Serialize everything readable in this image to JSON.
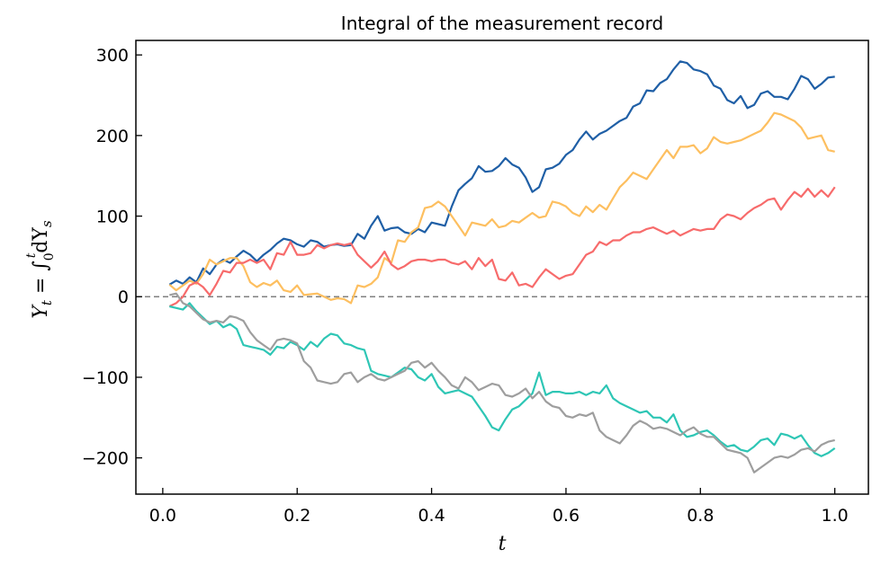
{
  "chart_data": {
    "type": "line",
    "title": "Integral of the measurement record",
    "xlabel": "t",
    "ylabel": {
      "base": "Y",
      "sub": "t",
      "mid": " = ∫",
      "lower": "0",
      "upper": "t",
      "rest": "dY",
      "rest_sub": "s"
    },
    "xlim": [
      -0.04,
      1.05
    ],
    "ylim": [
      -245,
      318
    ],
    "xticks": [
      0.0,
      0.2,
      0.4,
      0.6,
      0.8,
      1.0
    ],
    "xtick_labels": [
      "0.0",
      "0.2",
      "0.4",
      "0.6",
      "0.8",
      "1.0"
    ],
    "yticks": [
      300,
      200,
      100,
      0,
      -100,
      -200
    ],
    "ytick_labels": [
      "300",
      "200",
      "100",
      "0",
      "−100",
      "−200"
    ],
    "grid": false,
    "reference_line": {
      "y": 0,
      "style": "dashed",
      "color": "#808080"
    },
    "series": [
      {
        "color": "#1f5fa6",
        "x": [
          0.01,
          0.02,
          0.03,
          0.04,
          0.05,
          0.06,
          0.07,
          0.08,
          0.09,
          0.1,
          0.11,
          0.12,
          0.13,
          0.14,
          0.15,
          0.16,
          0.17,
          0.18,
          0.19,
          0.2,
          0.21,
          0.22,
          0.23,
          0.24,
          0.25,
          0.26,
          0.27,
          0.28,
          0.29,
          0.3,
          0.31,
          0.32,
          0.33,
          0.34,
          0.35,
          0.36,
          0.37,
          0.38,
          0.39,
          0.4,
          0.41,
          0.42,
          0.43,
          0.44,
          0.45,
          0.46,
          0.47,
          0.48,
          0.49,
          0.5,
          0.51,
          0.52,
          0.53,
          0.54,
          0.55,
          0.56,
          0.57,
          0.58,
          0.59,
          0.6,
          0.61,
          0.62,
          0.63,
          0.64,
          0.65,
          0.66,
          0.67,
          0.68,
          0.69,
          0.7,
          0.71,
          0.72,
          0.73,
          0.74,
          0.75,
          0.76,
          0.77,
          0.78,
          0.79,
          0.8,
          0.81,
          0.82,
          0.83,
          0.84,
          0.85,
          0.86,
          0.87,
          0.88,
          0.89,
          0.9,
          0.91,
          0.92,
          0.93,
          0.94,
          0.95,
          0.96,
          0.97,
          0.98,
          0.99,
          1.0
        ],
        "y": [
          15,
          20,
          16,
          24,
          18,
          35,
          28,
          40,
          46,
          42,
          50,
          57,
          52,
          44,
          52,
          58,
          66,
          72,
          70,
          65,
          62,
          70,
          68,
          62,
          64,
          65,
          63,
          64,
          78,
          72,
          88,
          100,
          82,
          85,
          86,
          80,
          78,
          84,
          80,
          92,
          90,
          88,
          112,
          132,
          140,
          147,
          162,
          155,
          156,
          162,
          172,
          164,
          160,
          148,
          130,
          136,
          158,
          160,
          165,
          176,
          182,
          195,
          205,
          195,
          202,
          206,
          212,
          218,
          222,
          236,
          240,
          256,
          255,
          265,
          270,
          282,
          292,
          290,
          282,
          280,
          276,
          262,
          258,
          244,
          240,
          249,
          234,
          238,
          252,
          255,
          248,
          248,
          245,
          258,
          274,
          270,
          258,
          264,
          272,
          273
        ]
      },
      {
        "color": "#fdbf60",
        "x": [
          0.01,
          0.02,
          0.03,
          0.04,
          0.05,
          0.06,
          0.07,
          0.08,
          0.09,
          0.1,
          0.11,
          0.12,
          0.13,
          0.14,
          0.15,
          0.16,
          0.17,
          0.18,
          0.19,
          0.2,
          0.21,
          0.22,
          0.23,
          0.24,
          0.25,
          0.26,
          0.27,
          0.28,
          0.29,
          0.3,
          0.31,
          0.32,
          0.33,
          0.34,
          0.35,
          0.36,
          0.37,
          0.38,
          0.39,
          0.4,
          0.41,
          0.42,
          0.43,
          0.44,
          0.45,
          0.46,
          0.47,
          0.48,
          0.49,
          0.5,
          0.51,
          0.52,
          0.53,
          0.54,
          0.55,
          0.56,
          0.57,
          0.58,
          0.59,
          0.6,
          0.61,
          0.62,
          0.63,
          0.64,
          0.65,
          0.66,
          0.67,
          0.68,
          0.69,
          0.7,
          0.71,
          0.72,
          0.73,
          0.74,
          0.75,
          0.76,
          0.77,
          0.78,
          0.79,
          0.8,
          0.81,
          0.82,
          0.83,
          0.84,
          0.85,
          0.86,
          0.87,
          0.88,
          0.89,
          0.9,
          0.91,
          0.92,
          0.93,
          0.94,
          0.95,
          0.96,
          0.97,
          0.98,
          0.99,
          1.0
        ],
        "y": [
          15,
          8,
          14,
          20,
          16,
          28,
          46,
          40,
          44,
          48,
          48,
          38,
          18,
          12,
          17,
          14,
          20,
          8,
          6,
          14,
          2,
          3,
          4,
          0,
          -4,
          -2,
          -3,
          -8,
          14,
          12,
          16,
          24,
          48,
          42,
          70,
          68,
          80,
          86,
          110,
          112,
          118,
          112,
          100,
          88,
          76,
          92,
          90,
          88,
          96,
          86,
          88,
          94,
          92,
          98,
          104,
          98,
          100,
          118,
          116,
          112,
          104,
          100,
          112,
          105,
          114,
          108,
          122,
          136,
          144,
          154,
          150,
          146,
          158,
          170,
          182,
          172,
          186,
          186,
          188,
          178,
          184,
          198,
          192,
          190,
          192,
          194,
          198,
          202,
          206,
          216,
          228,
          226,
          222,
          218,
          210,
          196,
          198,
          200,
          182,
          180
        ]
      },
      {
        "color": "#f76b6b",
        "x": [
          0.01,
          0.02,
          0.03,
          0.04,
          0.05,
          0.06,
          0.07,
          0.08,
          0.09,
          0.1,
          0.11,
          0.12,
          0.13,
          0.14,
          0.15,
          0.16,
          0.17,
          0.18,
          0.19,
          0.2,
          0.21,
          0.22,
          0.23,
          0.24,
          0.25,
          0.26,
          0.27,
          0.28,
          0.29,
          0.3,
          0.31,
          0.32,
          0.33,
          0.34,
          0.35,
          0.36,
          0.37,
          0.38,
          0.39,
          0.4,
          0.41,
          0.42,
          0.43,
          0.44,
          0.45,
          0.46,
          0.47,
          0.48,
          0.49,
          0.5,
          0.51,
          0.52,
          0.53,
          0.54,
          0.55,
          0.56,
          0.57,
          0.58,
          0.59,
          0.6,
          0.61,
          0.62,
          0.63,
          0.64,
          0.65,
          0.66,
          0.67,
          0.68,
          0.69,
          0.7,
          0.71,
          0.72,
          0.73,
          0.74,
          0.75,
          0.76,
          0.77,
          0.78,
          0.79,
          0.8,
          0.81,
          0.82,
          0.83,
          0.84,
          0.85,
          0.86,
          0.87,
          0.88,
          0.89,
          0.9,
          0.91,
          0.92,
          0.93,
          0.94,
          0.95,
          0.96,
          0.97,
          0.98,
          0.99,
          1.0
        ],
        "y": [
          -12,
          -8,
          0,
          14,
          18,
          12,
          2,
          16,
          32,
          30,
          42,
          42,
          46,
          42,
          46,
          34,
          54,
          52,
          68,
          52,
          52,
          54,
          64,
          60,
          64,
          66,
          64,
          66,
          52,
          44,
          36,
          44,
          56,
          40,
          34,
          38,
          44,
          46,
          46,
          44,
          46,
          46,
          42,
          40,
          44,
          34,
          48,
          38,
          46,
          22,
          20,
          30,
          14,
          16,
          12,
          24,
          34,
          28,
          22,
          26,
          28,
          40,
          52,
          56,
          68,
          64,
          70,
          70,
          76,
          80,
          80,
          84,
          86,
          82,
          78,
          82,
          76,
          80,
          84,
          82,
          84,
          84,
          96,
          102,
          100,
          96,
          104,
          110,
          114,
          120,
          122,
          108,
          120,
          130,
          124,
          134,
          124,
          132,
          124,
          136
        ]
      },
      {
        "color": "#2ec6b5",
        "x": [
          0.01,
          0.02,
          0.03,
          0.04,
          0.05,
          0.06,
          0.07,
          0.08,
          0.09,
          0.1,
          0.11,
          0.12,
          0.13,
          0.14,
          0.15,
          0.16,
          0.17,
          0.18,
          0.19,
          0.2,
          0.21,
          0.22,
          0.23,
          0.24,
          0.25,
          0.26,
          0.27,
          0.28,
          0.29,
          0.3,
          0.31,
          0.32,
          0.33,
          0.34,
          0.35,
          0.36,
          0.37,
          0.38,
          0.39,
          0.4,
          0.41,
          0.42,
          0.43,
          0.44,
          0.45,
          0.46,
          0.47,
          0.48,
          0.49,
          0.5,
          0.51,
          0.52,
          0.53,
          0.54,
          0.55,
          0.56,
          0.57,
          0.58,
          0.59,
          0.6,
          0.61,
          0.62,
          0.63,
          0.64,
          0.65,
          0.66,
          0.67,
          0.68,
          0.69,
          0.7,
          0.71,
          0.72,
          0.73,
          0.74,
          0.75,
          0.76,
          0.77,
          0.78,
          0.79,
          0.8,
          0.81,
          0.82,
          0.83,
          0.84,
          0.85,
          0.86,
          0.87,
          0.88,
          0.89,
          0.9,
          0.91,
          0.92,
          0.93,
          0.94,
          0.95,
          0.96,
          0.97,
          0.98,
          0.99,
          1.0
        ],
        "y": [
          -12,
          -14,
          -16,
          -8,
          -18,
          -26,
          -34,
          -30,
          -38,
          -34,
          -40,
          -60,
          -62,
          -64,
          -66,
          -72,
          -62,
          -64,
          -56,
          -60,
          -66,
          -56,
          -62,
          -52,
          -46,
          -48,
          -58,
          -60,
          -64,
          -66,
          -92,
          -96,
          -98,
          -100,
          -94,
          -88,
          -90,
          -100,
          -104,
          -96,
          -112,
          -120,
          -118,
          -116,
          -120,
          -124,
          -136,
          -148,
          -162,
          -166,
          -152,
          -140,
          -136,
          -128,
          -120,
          -94,
          -122,
          -118,
          -118,
          -120,
          -120,
          -118,
          -122,
          -118,
          -120,
          -110,
          -126,
          -132,
          -136,
          -140,
          -144,
          -142,
          -150,
          -150,
          -156,
          -146,
          -166,
          -174,
          -172,
          -168,
          -166,
          -172,
          -180,
          -186,
          -184,
          -190,
          -192,
          -186,
          -178,
          -176,
          -184,
          -170,
          -172,
          -176,
          -172,
          -184,
          -194,
          -198,
          -194,
          -188
        ]
      },
      {
        "color": "#9e9e9e",
        "x": [
          0.01,
          0.02,
          0.03,
          0.04,
          0.05,
          0.06,
          0.07,
          0.08,
          0.09,
          0.1,
          0.11,
          0.12,
          0.13,
          0.14,
          0.15,
          0.16,
          0.17,
          0.18,
          0.19,
          0.2,
          0.21,
          0.22,
          0.23,
          0.24,
          0.25,
          0.26,
          0.27,
          0.28,
          0.29,
          0.3,
          0.31,
          0.32,
          0.33,
          0.34,
          0.35,
          0.36,
          0.37,
          0.38,
          0.39,
          0.4,
          0.41,
          0.42,
          0.43,
          0.44,
          0.45,
          0.46,
          0.47,
          0.48,
          0.49,
          0.5,
          0.51,
          0.52,
          0.53,
          0.54,
          0.55,
          0.56,
          0.57,
          0.58,
          0.59,
          0.6,
          0.61,
          0.62,
          0.63,
          0.64,
          0.65,
          0.66,
          0.67,
          0.68,
          0.69,
          0.7,
          0.71,
          0.72,
          0.73,
          0.74,
          0.75,
          0.76,
          0.77,
          0.78,
          0.79,
          0.8,
          0.81,
          0.82,
          0.83,
          0.84,
          0.85,
          0.86,
          0.87,
          0.88,
          0.89,
          0.9,
          0.91,
          0.92,
          0.93,
          0.94,
          0.95,
          0.96,
          0.97,
          0.98,
          0.99,
          1.0
        ],
        "y": [
          2,
          4,
          -8,
          -12,
          -20,
          -28,
          -32,
          -30,
          -32,
          -24,
          -26,
          -30,
          -44,
          -54,
          -60,
          -66,
          -54,
          -52,
          -54,
          -58,
          -80,
          -88,
          -104,
          -106,
          -108,
          -106,
          -96,
          -94,
          -106,
          -100,
          -96,
          -102,
          -104,
          -100,
          -96,
          -92,
          -82,
          -80,
          -88,
          -82,
          -92,
          -100,
          -110,
          -114,
          -100,
          -106,
          -116,
          -112,
          -108,
          -110,
          -122,
          -124,
          -120,
          -114,
          -126,
          -118,
          -130,
          -136,
          -138,
          -148,
          -150,
          -146,
          -148,
          -144,
          -166,
          -174,
          -178,
          -182,
          -172,
          -160,
          -154,
          -158,
          -164,
          -162,
          -164,
          -168,
          -172,
          -166,
          -162,
          -170,
          -174,
          -174,
          -182,
          -190,
          -192,
          -194,
          -200,
          -218,
          -212,
          -206,
          -200,
          -198,
          -200,
          -196,
          -190,
          -188,
          -192,
          -184,
          -180,
          -178
        ]
      }
    ]
  }
}
